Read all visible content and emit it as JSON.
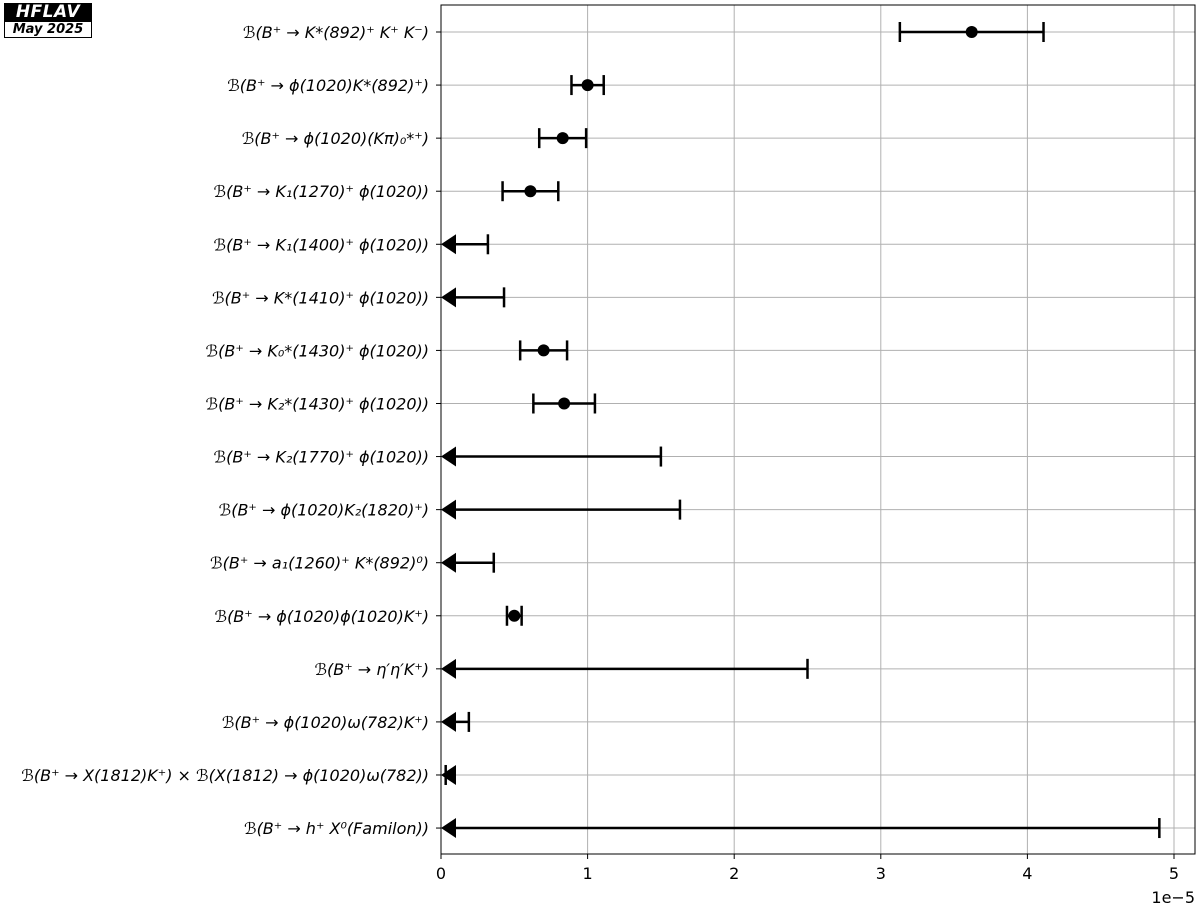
{
  "logo": {
    "title": "HFLAV",
    "date": "May 2025"
  },
  "chart_data": {
    "type": "scatter",
    "orientation": "horizontal",
    "x_scale_label": "1e−5",
    "xlim": [
      0,
      5.15
    ],
    "x_ticks": [
      0,
      1,
      2,
      3,
      4,
      5
    ],
    "x_tick_labels": [
      "0",
      "1",
      "2",
      "3",
      "4",
      "5"
    ],
    "grid": true,
    "entries": [
      {
        "label": "ℬ(B⁺ → K*(892)⁺ K⁺ K⁻)",
        "kind": "measurement",
        "value": 3.62,
        "low": 3.13,
        "high": 4.11
      },
      {
        "label": "ℬ(B⁺ → ϕ(1020)K*(892)⁺)",
        "kind": "measurement",
        "value": 1.0,
        "low": 0.89,
        "high": 1.11
      },
      {
        "label": "ℬ(B⁺ → ϕ(1020)(Kπ)₀*⁺)",
        "kind": "measurement",
        "value": 0.83,
        "low": 0.67,
        "high": 0.99
      },
      {
        "label": "ℬ(B⁺ → K₁(1270)⁺ ϕ(1020))",
        "kind": "measurement",
        "value": 0.61,
        "low": 0.42,
        "high": 0.8
      },
      {
        "label": "ℬ(B⁺ → K₁(1400)⁺ ϕ(1020))",
        "kind": "upper_limit",
        "value": 0.32
      },
      {
        "label": "ℬ(B⁺ → K*(1410)⁺ ϕ(1020))",
        "kind": "upper_limit",
        "value": 0.43
      },
      {
        "label": "ℬ(B⁺ → K₀*(1430)⁺ ϕ(1020))",
        "kind": "measurement",
        "value": 0.7,
        "low": 0.54,
        "high": 0.86
      },
      {
        "label": "ℬ(B⁺ → K₂*(1430)⁺ ϕ(1020))",
        "kind": "measurement",
        "value": 0.84,
        "low": 0.63,
        "high": 1.05
      },
      {
        "label": "ℬ(B⁺ → K₂(1770)⁺ ϕ(1020))",
        "kind": "upper_limit",
        "value": 1.5
      },
      {
        "label": "ℬ(B⁺ → ϕ(1020)K₂(1820)⁺)",
        "kind": "upper_limit",
        "value": 1.63
      },
      {
        "label": "ℬ(B⁺ → a₁(1260)⁺ K*(892)⁰)",
        "kind": "upper_limit",
        "value": 0.36
      },
      {
        "label": "ℬ(B⁺ → ϕ(1020)ϕ(1020)K⁺)",
        "kind": "measurement",
        "value": 0.5,
        "low": 0.45,
        "high": 0.55
      },
      {
        "label": "ℬ(B⁺ → η′η′K⁺)",
        "kind": "upper_limit",
        "value": 2.5
      },
      {
        "label": "ℬ(B⁺ → ϕ(1020)ω(782)K⁺)",
        "kind": "upper_limit",
        "value": 0.19
      },
      {
        "label": "ℬ(B⁺ → X(1812)K⁺) × ℬ(X(1812) → ϕ(1020)ω(782))",
        "kind": "upper_limit",
        "value": 0.032
      },
      {
        "label": "ℬ(B⁺ → h⁺ X⁰(Familon))",
        "kind": "upper_limit",
        "value": 4.9
      }
    ]
  }
}
